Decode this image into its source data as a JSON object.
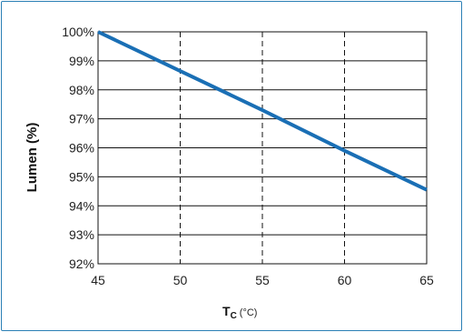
{
  "chart_data": {
    "type": "line",
    "xlabel_main": "T",
    "xlabel_sub": "C",
    "xlabel_unit": "(°C)",
    "ylabel": "Lumen (%)",
    "xlim": [
      45,
      65
    ],
    "ylim": [
      92,
      100
    ],
    "x_ticks": [
      45,
      50,
      55,
      60,
      65
    ],
    "x_tick_labels": [
      "45",
      "50",
      "55",
      "60",
      "65"
    ],
    "y_ticks": [
      92,
      93,
      94,
      95,
      96,
      97,
      98,
      99,
      100
    ],
    "y_tick_labels": [
      "92%",
      "93%",
      "94%",
      "95%",
      "96%",
      "97%",
      "98%",
      "99%",
      "100%"
    ],
    "grid": {
      "horizontal": "solid",
      "vertical": "dashed"
    },
    "series": [
      {
        "color": "#1a6fb5",
        "x": [
          45,
          50,
          55,
          60,
          65
        ],
        "y": [
          100,
          98.65,
          97.3,
          95.9,
          94.55
        ]
      }
    ]
  }
}
